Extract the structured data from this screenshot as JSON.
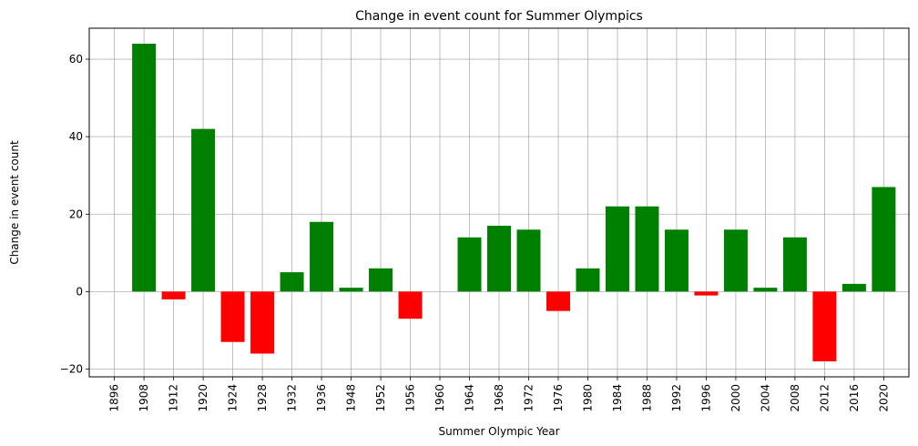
{
  "chart_data": {
    "type": "bar",
    "title": "Change in event count for Summer Olympics",
    "xlabel": "Summer Olympic Year",
    "ylabel": "Change in event count",
    "categories": [
      "1896",
      "1908",
      "1912",
      "1920",
      "1924",
      "1928",
      "1932",
      "1936",
      "1948",
      "1952",
      "1956",
      "1960",
      "1964",
      "1968",
      "1972",
      "1976",
      "1980",
      "1984",
      "1988",
      "1992",
      "1996",
      "2000",
      "2004",
      "2008",
      "2012",
      "2016",
      "2020"
    ],
    "values": [
      0,
      64,
      -2,
      42,
      -13,
      -16,
      5,
      18,
      1,
      6,
      -7,
      0,
      14,
      17,
      16,
      -5,
      6,
      22,
      22,
      16,
      -1,
      16,
      1,
      14,
      -18,
      2,
      27
    ],
    "ylim": [
      -22,
      68
    ],
    "yticks": [
      -20,
      0,
      20,
      40,
      60
    ],
    "yticklabels": [
      "−20",
      "0",
      "20",
      "40",
      "60"
    ],
    "grid": true,
    "colors": {
      "positive": "#008000",
      "negative": "#ff0000"
    }
  }
}
